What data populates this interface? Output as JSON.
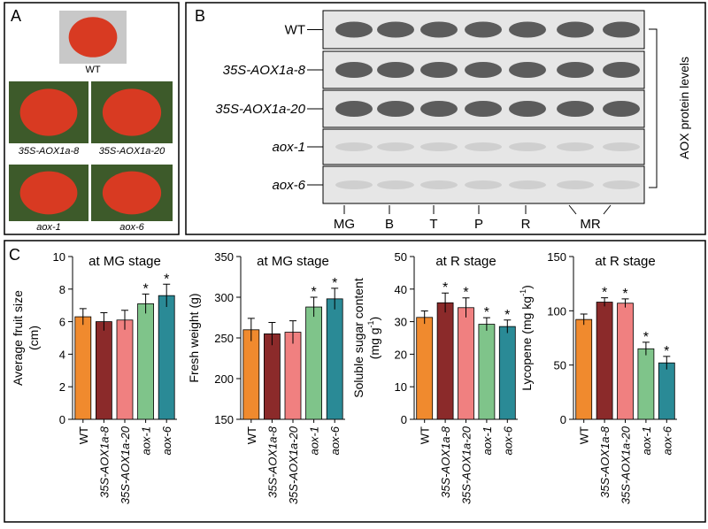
{
  "panel_a": {
    "label": "A",
    "photos": [
      "WT",
      "35S-AOX1a-8",
      "35S-AOX1a-20",
      "aox-1",
      "aox-6"
    ]
  },
  "panel_b": {
    "label": "B",
    "rows": [
      "WT",
      "35S-AOX1a-8",
      "35S-AOX1a-20",
      "aox-1",
      "aox-6"
    ],
    "lanes": [
      "MG",
      "B",
      "T",
      "P",
      "R",
      "MR"
    ],
    "bracket_label": "AOX protein levels"
  },
  "panel_c": {
    "label": "C"
  },
  "chart_data": [
    {
      "type": "bar",
      "title": "at MG stage",
      "ylabel": [
        "Average fruit size",
        "(cm)"
      ],
      "categories": [
        "WT",
        "35S-AOX1a-8",
        "35S-AOX1a-20",
        "aox-1",
        "aox-6"
      ],
      "italic_categories": [
        false,
        true,
        true,
        true,
        true
      ],
      "values": [
        6.3,
        6.0,
        6.1,
        7.1,
        7.6
      ],
      "errors": [
        0.5,
        0.55,
        0.6,
        0.6,
        0.7
      ],
      "significance": [
        null,
        null,
        null,
        "*",
        "*"
      ],
      "colors": [
        "#f08a2e",
        "#8b2a2a",
        "#f08080",
        "#7fc48a",
        "#2a8a96"
      ],
      "ylim": [
        0,
        10
      ],
      "yticks": [
        0,
        2,
        4,
        6,
        8,
        10
      ]
    },
    {
      "type": "bar",
      "title": "at MG stage",
      "ylabel": [
        "Fresh weight (g)"
      ],
      "categories": [
        "WT",
        "35S-AOX1a-8",
        "35S-AOX1a-20",
        "aox-1",
        "aox-6"
      ],
      "italic_categories": [
        false,
        true,
        true,
        true,
        true
      ],
      "values": [
        260,
        255,
        257,
        288,
        298
      ],
      "errors": [
        14,
        14,
        14,
        12,
        13
      ],
      "significance": [
        null,
        null,
        null,
        "*",
        "*"
      ],
      "colors": [
        "#f08a2e",
        "#8b2a2a",
        "#f08080",
        "#7fc48a",
        "#2a8a96"
      ],
      "ylim": [
        150,
        350
      ],
      "yticks": [
        150,
        200,
        250,
        300,
        350
      ]
    },
    {
      "type": "bar",
      "title": "at R stage",
      "ylabel": [
        "Soluble sugar content"
      ],
      "ylabel_unit": {
        "before": "(mg g",
        "sup": "-1",
        "after": ")"
      },
      "categories": [
        "WT",
        "35S-AOX1a-8",
        "35S-AOX1a-20",
        "aox-1",
        "aox-6"
      ],
      "italic_categories": [
        false,
        true,
        true,
        true,
        true
      ],
      "values": [
        31.3,
        35.8,
        34.3,
        29.2,
        28.5
      ],
      "errors": [
        2,
        3,
        3,
        2,
        2
      ],
      "significance": [
        null,
        "*",
        "*",
        "*",
        "*"
      ],
      "colors": [
        "#f08a2e",
        "#8b2a2a",
        "#f08080",
        "#7fc48a",
        "#2a8a96"
      ],
      "ylim": [
        0,
        50
      ],
      "yticks": [
        0,
        10,
        20,
        30,
        40,
        50
      ]
    },
    {
      "type": "bar",
      "title": "at R stage",
      "ylabel": [
        "Lycopene "
      ],
      "ylabel_unit": {
        "before": "(mg kg",
        "sup": "-1",
        "after": ")"
      },
      "categories": [
        "WT",
        "35S-AOX1a-8",
        "35S-AOX1a-20",
        "aox-1",
        "aox-6"
      ],
      "italic_categories": [
        false,
        true,
        true,
        true,
        true
      ],
      "values": [
        92,
        108,
        107,
        65,
        52
      ],
      "errors": [
        5,
        4,
        4,
        6,
        6
      ],
      "significance": [
        null,
        "*",
        "*",
        "*",
        "*"
      ],
      "colors": [
        "#f08a2e",
        "#8b2a2a",
        "#f08080",
        "#7fc48a",
        "#2a8a96"
      ],
      "ylim": [
        0,
        150
      ],
      "yticks": [
        0,
        50,
        100,
        150
      ]
    }
  ]
}
